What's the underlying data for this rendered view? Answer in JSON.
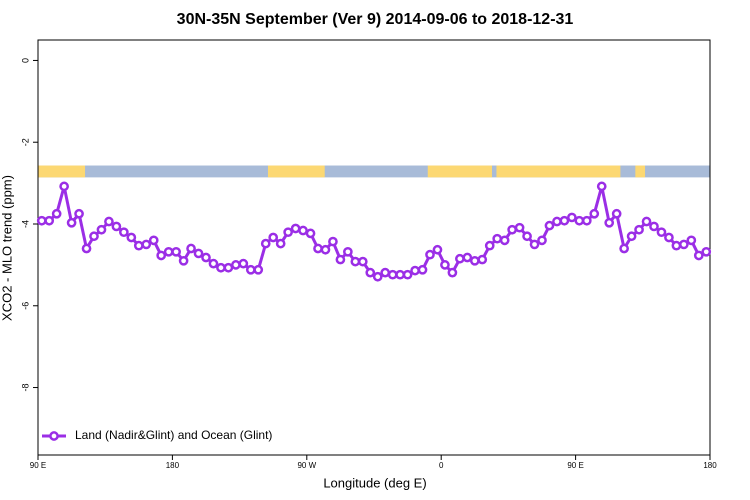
{
  "chart_data": {
    "type": "line",
    "title": "30N-35N September (Ver 9)   2014-09-06 to 2018-12-31",
    "x_label": "Longitude (deg E)",
    "y_label": "XCO2 - MLO trend (ppm)",
    "xlim": [
      90,
      540
    ],
    "ylim": [
      -9.65,
      0.5
    ],
    "xticks": [
      {
        "value": 90,
        "label": "90 E"
      },
      {
        "value": 180,
        "label": "180"
      },
      {
        "value": 270,
        "label": "90 W"
      },
      {
        "value": 360,
        "label": "0"
      },
      {
        "value": 450,
        "label": "90 E"
      },
      {
        "value": 540,
        "label": "180"
      }
    ],
    "yticks": [
      0,
      -2,
      -4,
      -6,
      -8
    ],
    "legend": "bottom-left",
    "land_mask": {
      "ylim": [
        -2.86,
        -2.57
      ],
      "land_color": "#fcd873",
      "ocean_color": "#a8bbd8",
      "land": [
        [
          90,
          121.5
        ],
        [
          244,
          282
        ],
        [
          351,
          394
        ],
        [
          397,
          480
        ],
        [
          490,
          496.5
        ]
      ]
    },
    "x": [
      92.5,
      97.5,
      102.5,
      107.5,
      112.5,
      117.5,
      122.5,
      127.5,
      132.5,
      137.5,
      142.5,
      147.5,
      152.5,
      157.5,
      162.5,
      167.5,
      172.5,
      177.5,
      182.5,
      187.5,
      192.5,
      197.5,
      202.5,
      207.5,
      212.5,
      217.5,
      222.5,
      227.5,
      232.5,
      237.5,
      242.5,
      247.5,
      252.5,
      257.5,
      262.5,
      267.5,
      272.5,
      277.5,
      282.5,
      287.5,
      292.5,
      297.5,
      302.5,
      307.5,
      312.5,
      317.5,
      322.5,
      327.5,
      332.5,
      337.5,
      342.5,
      347.5,
      352.5,
      357.5,
      362.5,
      367.5,
      372.5,
      377.5,
      382.5,
      387.5,
      392.5,
      397.5,
      402.5,
      407.5,
      412.5,
      417.5,
      422.5,
      427.5,
      432.5,
      437.5,
      442.5,
      447.5,
      452.5,
      457.5,
      462.5,
      467.5,
      472.5,
      477.5,
      482.5,
      487.5,
      492.5,
      497.5,
      502.5,
      507.5,
      512.5,
      517.5,
      522.5,
      527.5,
      532.5,
      537.5
    ],
    "series": [
      {
        "name": "Land (Nadir&Glint) and Ocean (Glint)",
        "color": "#9b2ee6",
        "values": [
          -3.92,
          -3.92,
          -3.75,
          -3.08,
          -3.97,
          -3.75,
          -4.6,
          -4.3,
          -4.14,
          -3.94,
          -4.06,
          -4.2,
          -4.33,
          -4.53,
          -4.5,
          -4.4,
          -4.77,
          -4.68,
          -4.68,
          -4.9,
          -4.6,
          -4.72,
          -4.82,
          -4.97,
          -5.07,
          -5.07,
          -5.0,
          -4.97,
          -5.12,
          -5.12,
          -4.48,
          -4.33,
          -4.48,
          -4.2,
          -4.11,
          -4.16,
          -4.23,
          -4.6,
          -4.63,
          -4.43,
          -4.87,
          -4.68,
          -4.92,
          -4.92,
          -5.19,
          -5.29,
          -5.19,
          -5.24,
          -5.24,
          -5.24,
          -5.14,
          -5.12,
          -4.75,
          -4.63,
          -5.0,
          -5.19,
          -4.85,
          -4.82,
          -4.9,
          -4.87,
          -4.53,
          -4.36,
          -4.4,
          -4.14,
          -4.09,
          -4.3,
          -4.5,
          -4.4,
          -4.04,
          -3.94,
          -3.92,
          -3.84,
          -3.92,
          -3.92,
          -3.75,
          -3.08,
          -3.97,
          -3.75,
          -4.6,
          -4.3,
          -4.14,
          -3.94,
          -4.06,
          -4.2,
          -4.33,
          -4.53,
          -4.5,
          -4.4,
          -4.77,
          -4.68
        ]
      }
    ]
  }
}
